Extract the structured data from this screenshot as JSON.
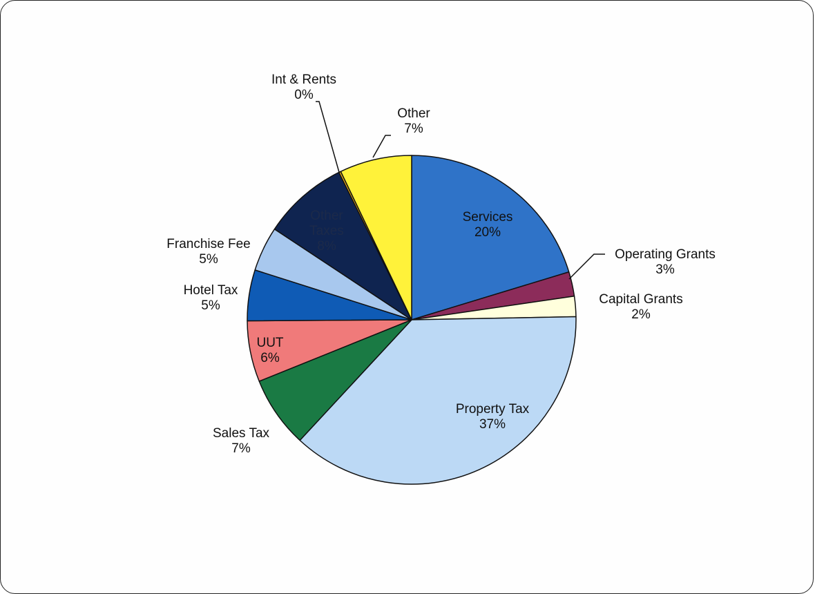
{
  "chart_data": {
    "type": "pie",
    "title": "",
    "start_angle_deg": 0,
    "direction": "clockwise",
    "slices": [
      {
        "label": "Services",
        "percent_label": "20%",
        "value": 20.3,
        "color": "#2f73c8"
      },
      {
        "label": "Operating Grants",
        "percent_label": "3%",
        "value": 2.4,
        "color": "#8c2c5a"
      },
      {
        "label": "Capital Grants",
        "percent_label": "2%",
        "value": 2.0,
        "color": "#ffffdc"
      },
      {
        "label": "Property Tax",
        "percent_label": "37%",
        "value": 37.2,
        "color": "#bcd9f5"
      },
      {
        "label": "Sales Tax",
        "percent_label": "7%",
        "value": 7.0,
        "color": "#1a7a44"
      },
      {
        "label": "UUT",
        "percent_label": "6%",
        "value": 6.0,
        "color": "#f07a7a"
      },
      {
        "label": "Hotel Tax",
        "percent_label": "5%",
        "value": 5.0,
        "color": "#0f5bb5"
      },
      {
        "label": "Franchise Fee",
        "percent_label": "5%",
        "value": 4.4,
        "color": "#a8c8ee"
      },
      {
        "label": "Other Taxes",
        "percent_label": "8%",
        "value": 8.4,
        "color": "#0f2450"
      },
      {
        "label": "Int & Rents",
        "percent_label": "0%",
        "value": 0.2,
        "color": "#f2b31b"
      },
      {
        "label": "Other",
        "percent_label": "7%",
        "value": 7.1,
        "color": "#fff23a"
      }
    ]
  }
}
